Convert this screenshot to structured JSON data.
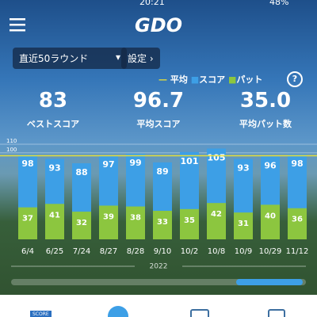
{
  "status": {
    "time": "20:21",
    "battery": "48%"
  },
  "header": {
    "logo": "GDO"
  },
  "controls": {
    "range": "直近50ラウンド",
    "settings": "設定"
  },
  "legend": [
    "平均",
    "スコア",
    "パット"
  ],
  "stats": [
    {
      "value": "83",
      "label": "ベストスコア"
    },
    {
      "value": "96.7",
      "label": "平均スコア"
    },
    {
      "value": "35.0",
      "label": "平均パット数"
    }
  ],
  "chart_data": {
    "type": "bar",
    "categories": [
      "6/4",
      "6/25",
      "7/24",
      "8/27",
      "8/28",
      "9/10",
      "10/2",
      "10/8",
      "10/9",
      "10/29",
      "11/12"
    ],
    "series": [
      {
        "name": "スコア",
        "color": "#3d9fe6",
        "values": [
          98,
          93,
          88,
          97,
          99,
          89,
          101,
          105,
          93,
          96,
          98
        ]
      },
      {
        "name": "パット",
        "color": "#8cc63f",
        "values": [
          37,
          41,
          32,
          39,
          38,
          33,
          35,
          42,
          31,
          40,
          36
        ]
      }
    ],
    "average_color": "#e3dd3b",
    "ylim": [
      0,
      110
    ],
    "yticks": [
      100,
      110
    ],
    "year": "2022"
  },
  "nav": {
    "score_badge": "SCORE"
  }
}
